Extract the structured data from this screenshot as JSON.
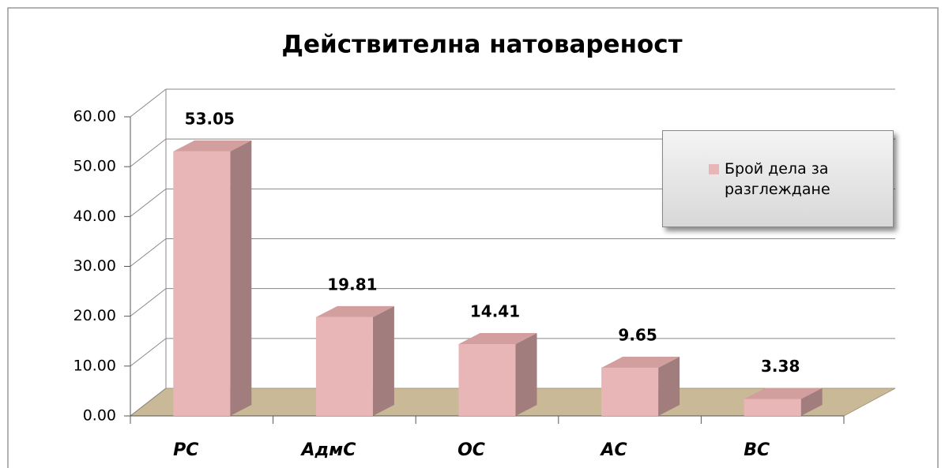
{
  "chart_data": {
    "type": "bar",
    "title": "Действителна натовареност",
    "categories": [
      "РС",
      "АдмС",
      "ОС",
      "АС",
      "ВС"
    ],
    "series": [
      {
        "name": "Брой дела за разглеждане",
        "color": "#e8b6b6",
        "values": [
          53.05,
          19.81,
          14.41,
          9.65,
          3.38
        ]
      }
    ],
    "ylim": [
      0,
      60
    ],
    "yticks": [
      {
        "value": 0,
        "label": "0.00"
      },
      {
        "value": 10,
        "label": "10.00"
      },
      {
        "value": 20,
        "label": "20.00"
      },
      {
        "value": 30,
        "label": "30.00"
      },
      {
        "value": 40,
        "label": "40.00"
      },
      {
        "value": 50,
        "label": "50.00"
      },
      {
        "value": 60,
        "label": "60.00"
      }
    ],
    "grid": true,
    "legend": "right"
  }
}
